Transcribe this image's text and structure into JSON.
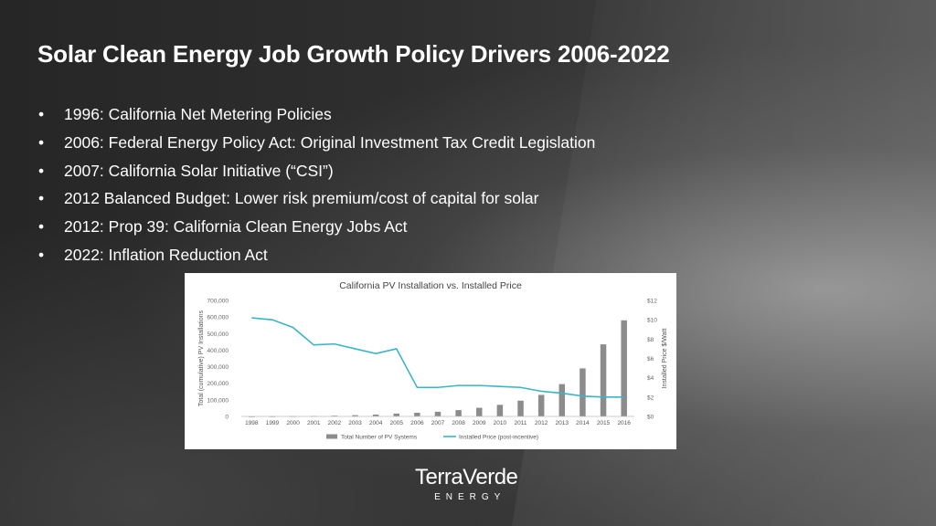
{
  "slide": {
    "title": "Solar Clean Energy Job Growth Policy Drivers 2006-2022",
    "bullet_marker": "•",
    "bullets": [
      "1996: California Net Metering Policies",
      "2006: Federal Energy Policy Act: Original Investment Tax Credit Legislation",
      "2007: California Solar Initiative (“CSI”)",
      "2012 Balanced Budget: Lower risk premium/cost of capital for solar",
      "2012: Prop 39: California Clean Energy Jobs Act",
      "2022: Inflation Reduction Act"
    ],
    "logo": {
      "name": "TerraVerde",
      "sub": "ENERGY"
    }
  },
  "chart_data": {
    "type": "bar",
    "title": "California PV Installation vs. Installed Price",
    "categories": [
      "1998",
      "1999",
      "2000",
      "2001",
      "2002",
      "2003",
      "2004",
      "2005",
      "2006",
      "2007",
      "2008",
      "2009",
      "2010",
      "2011",
      "2012",
      "2013",
      "2014",
      "2015",
      "2016"
    ],
    "ylabel": "Total (cumulative) PV Installations",
    "ylim": [
      0,
      700000
    ],
    "yticks": [
      "0",
      "100,000",
      "200,000",
      "300,000",
      "400,000",
      "500,000",
      "600,000",
      "700,000"
    ],
    "y2label": "Installed Price $/Watt",
    "y2lim": [
      0,
      12
    ],
    "y2ticks": [
      "$0",
      "$2",
      "$4",
      "$6",
      "$8",
      "$10",
      "$12"
    ],
    "series": [
      {
        "name": "Total Number of PV Systems",
        "type": "bar",
        "color": "#8c8c8c",
        "axis": "left",
        "values": [
          500,
          1000,
          1500,
          2500,
          4500,
          7500,
          11000,
          17000,
          22000,
          28000,
          38000,
          52000,
          70000,
          95000,
          130000,
          195000,
          290000,
          435000,
          580000
        ]
      },
      {
        "name": "Installed Price (post-incentive)",
        "type": "line",
        "color": "#39b5c9",
        "axis": "right",
        "values": [
          10.2,
          10.0,
          9.2,
          7.4,
          7.5,
          7.0,
          6.5,
          7.0,
          3.0,
          3.0,
          3.2,
          3.2,
          3.1,
          3.0,
          2.6,
          2.4,
          2.1,
          2.0,
          2.0
        ]
      }
    ],
    "legend": "bottom",
    "grid": false
  }
}
